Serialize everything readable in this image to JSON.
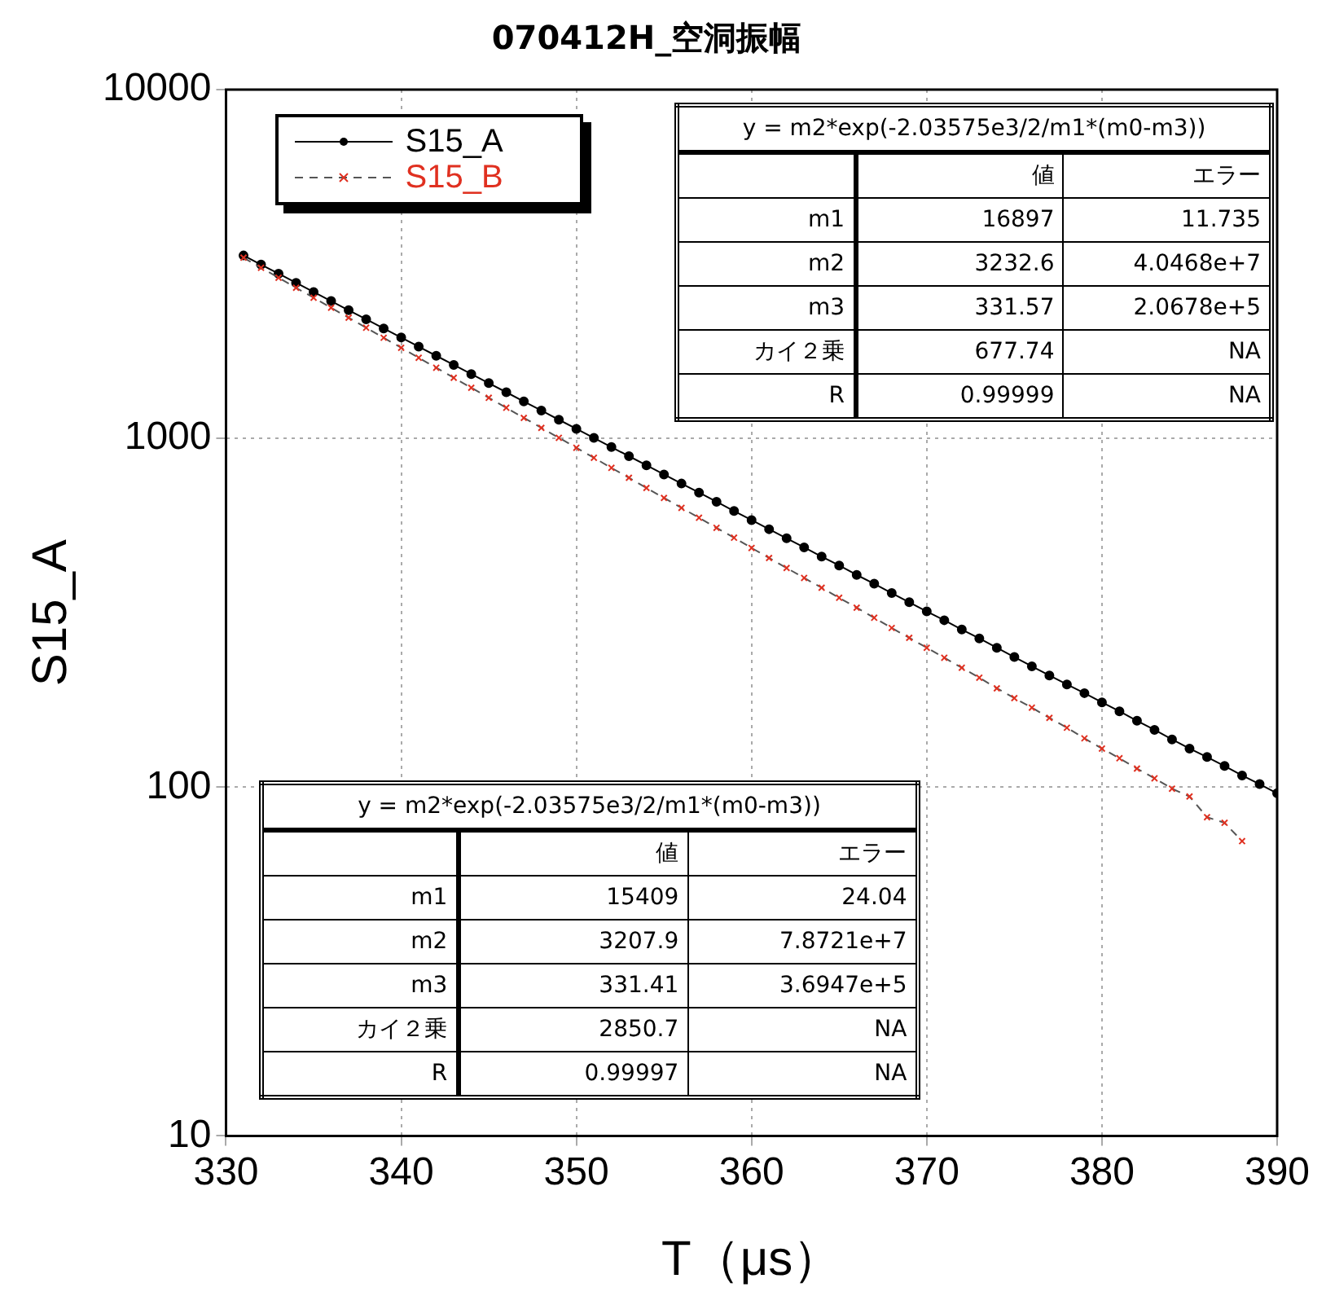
{
  "chart_data": {
    "type": "line",
    "title": "070412H_空洞振幅",
    "xlabel": "T（μs）",
    "ylabel": "S15_A",
    "xlim": [
      330,
      390
    ],
    "xticks": [
      330,
      340,
      350,
      360,
      370,
      380,
      390
    ],
    "ylim": [
      10,
      10000
    ],
    "yticks": [
      10,
      100,
      1000,
      10000
    ],
    "log": "y",
    "grid": true,
    "legend": "top left",
    "series": [
      {
        "name": "S15_A",
        "color": "#000000",
        "marker": "circle",
        "line_style": "solid",
        "x": [
          331,
          332,
          333,
          334,
          335,
          336,
          337,
          338,
          339,
          340,
          341,
          342,
          343,
          344,
          345,
          346,
          347,
          348,
          349,
          350,
          351,
          352,
          353,
          354,
          355,
          356,
          357,
          358,
          359,
          360,
          361,
          362,
          363,
          364,
          365,
          366,
          367,
          368,
          369,
          370,
          371,
          372,
          373,
          374,
          375,
          376,
          377,
          378,
          379,
          380,
          381,
          382,
          383,
          384,
          385,
          386,
          387,
          388,
          389,
          390
        ],
        "values": [
          3345,
          3150,
          2966,
          2792,
          2629,
          2476,
          2331,
          2195,
          2066,
          1946,
          1832,
          1725,
          1624,
          1529,
          1440,
          1356,
          1276,
          1202,
          1131,
          1065,
          1003,
          944,
          889,
          837,
          788,
          742,
          699,
          658,
          619,
          583,
          549,
          517,
          487,
          458,
          432,
          406,
          383,
          360,
          339,
          319,
          301,
          283,
          267,
          251,
          236,
          222,
          209,
          197,
          186,
          175,
          165,
          155,
          146,
          137,
          129,
          122,
          115,
          108,
          102,
          96
        ]
      },
      {
        "name": "S15_B",
        "color": "#e03020",
        "marker": "cross",
        "line_style": "dashed",
        "x": [
          331,
          332,
          333,
          334,
          335,
          336,
          337,
          338,
          339,
          340,
          341,
          342,
          343,
          344,
          345,
          346,
          347,
          348,
          349,
          350,
          351,
          352,
          353,
          354,
          355,
          356,
          357,
          358,
          359,
          360,
          361,
          362,
          363,
          364,
          365,
          366,
          367,
          368,
          369,
          370,
          371,
          372,
          373,
          374,
          375,
          376,
          377,
          378,
          379,
          380,
          381,
          382,
          383,
          384,
          385,
          386,
          387,
          388
        ],
        "values": [
          3296,
          3085,
          2888,
          2703,
          2531,
          2369,
          2218,
          2076,
          1943,
          1819,
          1703,
          1594,
          1492,
          1397,
          1307,
          1224,
          1145,
          1072,
          1004,
          940,
          880,
          823,
          771,
          721,
          675,
          632,
          592,
          554,
          519,
          485,
          454,
          425,
          398,
          373,
          349,
          327,
          306,
          286,
          268,
          251,
          235,
          220,
          206,
          192,
          180,
          169,
          158,
          148,
          138,
          129,
          121,
          113,
          106,
          99,
          94,
          82,
          79,
          70
        ]
      }
    ],
    "annotations": [
      "y = m2*exp(-2.03575e3/2/m1*(m0-m3))",
      "値",
      "エラー",
      "m1",
      "16897",
      "11.735",
      "m2",
      "3232.6",
      "4.0468e+7",
      "m3",
      "331.57",
      "2.0678e+5",
      "カイ２乗",
      "677.74",
      "NA",
      "R",
      "0.99999",
      "NA",
      "y = m2*exp(-2.03575e3/2/m1*(m0-m3))",
      "値",
      "エラー",
      "m1",
      "15409",
      "24.04",
      "m2",
      "3207.9",
      "7.8721e+7",
      "m3",
      "331.41",
      "3.6947e+5",
      "カイ２乗",
      "2850.7",
      "NA",
      "R",
      "0.99997",
      "NA"
    ]
  }
}
